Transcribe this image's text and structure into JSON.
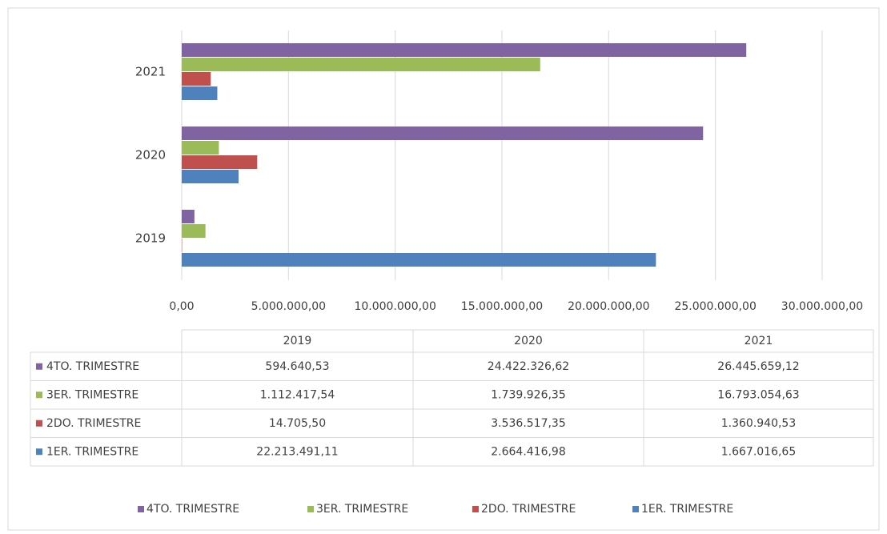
{
  "chart_data": {
    "type": "bar",
    "orientation": "horizontal",
    "categories": [
      "2019",
      "2020",
      "2021"
    ],
    "series": [
      {
        "name": "4TO. TRIMESTRE",
        "color": "#8064a2",
        "values": [
          594640.53,
          24422326.62,
          26445659.12
        ],
        "value_labels": [
          "594.640,53",
          "24.422.326,62",
          "26.445.659,12"
        ]
      },
      {
        "name": "3ER. TRIMESTRE",
        "color": "#9bbb59",
        "values": [
          1112417.54,
          1739926.35,
          16793054.63
        ],
        "value_labels": [
          "1.112.417,54",
          "1.739.926,35",
          "16.793.054,63"
        ]
      },
      {
        "name": "2DO. TRIMESTRE",
        "color": "#c0504d",
        "values": [
          14705.5,
          3536517.35,
          1360940.53
        ],
        "value_labels": [
          "14.705,50",
          "3.536.517,35",
          "1.360.940,53"
        ]
      },
      {
        "name": "1ER. TRIMESTRE",
        "color": "#4f81bd",
        "values": [
          22213491.11,
          2664416.98,
          1667016.65
        ],
        "value_labels": [
          "22.213.491,11",
          "2.664.416,98",
          "1.667.016,65"
        ]
      }
    ],
    "xlim": [
      0,
      30000000
    ],
    "xticks": [
      {
        "value": 0,
        "label": "0,00"
      },
      {
        "value": 5000000,
        "label": "5.000.000,00"
      },
      {
        "value": 10000000,
        "label": "10.000.000,00"
      },
      {
        "value": 15000000,
        "label": "15.000.000,00"
      },
      {
        "value": 20000000,
        "label": "20.000.000,00"
      },
      {
        "value": 25000000,
        "label": "25.000.000,00"
      },
      {
        "value": 30000000,
        "label": "30.000.000,00"
      }
    ],
    "grid": true,
    "data_table": true,
    "legend": "bottom"
  }
}
